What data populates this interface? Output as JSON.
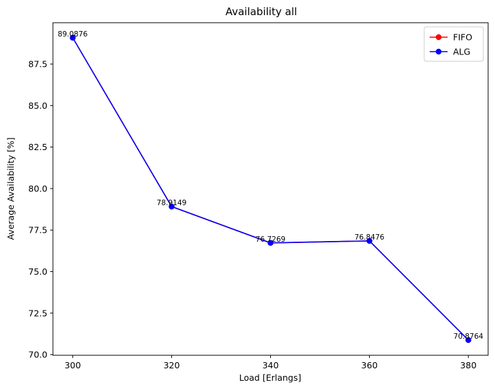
{
  "chart_data": {
    "type": "line",
    "title": "Availability all",
    "xlabel": "Load [Erlangs]",
    "ylabel": "Average Availability [%]",
    "x": [
      300,
      320,
      340,
      360,
      380
    ],
    "x_ticks": [
      300,
      320,
      340,
      360,
      380
    ],
    "y_ticks": [
      70.0,
      72.5,
      75.0,
      77.5,
      80.0,
      82.5,
      85.0,
      87.5
    ],
    "y_tick_labels": [
      "70.0",
      "72.5",
      "75.0",
      "77.5",
      "80.0",
      "82.5",
      "85.0",
      "87.5"
    ],
    "xlim": [
      296.0,
      384.0
    ],
    "ylim": [
      69.96,
      89.99
    ],
    "grid": false,
    "legend_position": "top-right",
    "series": [
      {
        "name": "FIFO",
        "color": "#ff0000",
        "marker": "circle",
        "values": [
          89.0876,
          78.9149,
          76.7269,
          76.8476,
          70.8764
        ]
      },
      {
        "name": "ALG",
        "color": "#0000ff",
        "marker": "circle",
        "values": [
          89.0876,
          78.9149,
          76.7269,
          76.8476,
          70.8764
        ]
      }
    ],
    "data_labels": [
      "89.0876",
      "78.9149",
      "76.7269",
      "76.8476",
      "70.8764"
    ]
  }
}
